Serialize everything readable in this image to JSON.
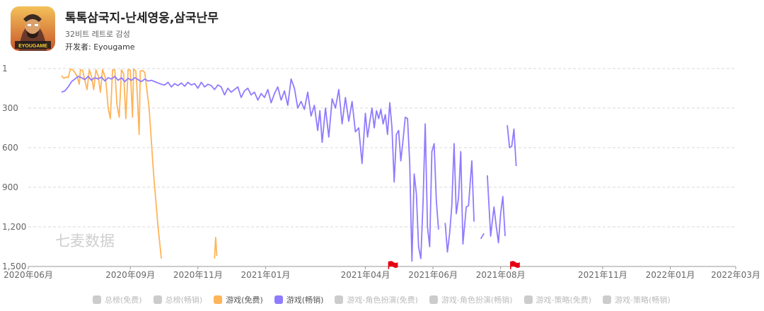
{
  "app": {
    "title": "톡톡삼국지-난세영웅,삼국난무",
    "subtitle": "32비트 레트로 감성",
    "developer": "开发者: Eyougame",
    "icon_label": "EYOUGAME"
  },
  "watermark": "七麦数据",
  "colors": {
    "free": "#ffb45a",
    "paid": "#8f7bff",
    "inactive": "#cccccc",
    "grid": "#d9d9d9",
    "flag": "#e60012"
  },
  "chart_data": {
    "type": "line",
    "y_inverted": true,
    "ylim": [
      1,
      1500
    ],
    "yticks": [
      "1",
      "300",
      "600",
      "900",
      "1,200",
      "1,500"
    ],
    "xlim": [
      "2020-06",
      "2022-03"
    ],
    "xticks": [
      "2020年06月",
      "2020年09月",
      "2020年11月",
      "2021年01月",
      "2021年04月",
      "2021年06月",
      "2021年08月",
      "2021年11月",
      "2022年01月",
      "2022年03月"
    ],
    "flags": [
      "2021-04-22",
      "2021-08-10"
    ],
    "legend": [
      {
        "label": "总榜(免费)",
        "active": false
      },
      {
        "label": "总榜(畅销)",
        "active": false
      },
      {
        "label": "游戏(免费)",
        "active": true,
        "color": "#ffb45a"
      },
      {
        "label": "游戏(畅销)",
        "active": true,
        "color": "#8f7bff"
      },
      {
        "label": "游戏-角色扮演(免费)",
        "active": false
      },
      {
        "label": "游戏-角色扮演(畅销)",
        "active": false
      },
      {
        "label": "游戏-策略(免费)",
        "active": false
      },
      {
        "label": "游戏-策略(畅销)",
        "active": false
      }
    ],
    "series": [
      {
        "name": "游戏(免费)",
        "color": "#ffb45a",
        "segments": [
          [
            [
              "2020-07-01",
              55
            ],
            [
              "2020-07-03",
              75
            ],
            [
              "2020-07-05",
              65
            ],
            [
              "2020-07-07",
              70
            ],
            [
              "2020-07-09",
              5
            ],
            [
              "2020-07-11",
              10
            ],
            [
              "2020-07-13",
              30
            ],
            [
              "2020-07-15",
              60
            ],
            [
              "2020-07-17",
              120
            ],
            [
              "2020-07-18",
              10
            ],
            [
              "2020-07-20",
              15
            ],
            [
              "2020-07-22",
              90
            ],
            [
              "2020-07-24",
              160
            ],
            [
              "2020-07-26",
              10
            ],
            [
              "2020-07-28",
              60
            ],
            [
              "2020-07-30",
              160
            ],
            [
              "2020-08-01",
              10
            ],
            [
              "2020-08-03",
              55
            ],
            [
              "2020-08-05",
              180
            ],
            [
              "2020-08-07",
              8
            ],
            [
              "2020-08-09",
              60
            ],
            [
              "2020-08-10",
              100
            ],
            [
              "2020-08-12",
              300
            ],
            [
              "2020-08-14",
              380
            ],
            [
              "2020-08-16",
              12
            ],
            [
              "2020-08-18",
              10
            ],
            [
              "2020-08-20",
              280
            ],
            [
              "2020-08-22",
              370
            ],
            [
              "2020-08-24",
              10
            ],
            [
              "2020-08-26",
              40
            ],
            [
              "2020-08-28",
              380
            ],
            [
              "2020-08-30",
              8
            ],
            [
              "2020-09-01",
              15
            ],
            [
              "2020-09-03",
              370
            ],
            [
              "2020-09-04",
              5
            ],
            [
              "2020-09-06",
              20
            ],
            [
              "2020-09-07",
              150
            ],
            [
              "2020-09-09",
              500
            ],
            [
              "2020-09-10",
              20
            ],
            [
              "2020-09-12",
              15
            ],
            [
              "2020-09-14",
              30
            ],
            [
              "2020-09-18",
              300
            ],
            [
              "2020-09-22",
              800
            ],
            [
              "2020-09-26",
              1200
            ],
            [
              "2020-09-29",
              1440
            ]
          ],
          [
            [
              "2020-11-16",
              1440
            ],
            [
              "2020-11-17",
              1280
            ],
            [
              "2020-11-18",
              1420
            ]
          ]
        ]
      },
      {
        "name": "游戏(畅销)",
        "color": "#8f7bff",
        "segments": [
          [
            [
              "2020-07-01",
              180
            ],
            [
              "2020-07-04",
              170
            ],
            [
              "2020-07-07",
              140
            ],
            [
              "2020-07-10",
              100
            ],
            [
              "2020-07-13",
              80
            ],
            [
              "2020-07-16",
              60
            ],
            [
              "2020-07-19",
              70
            ],
            [
              "2020-07-22",
              85
            ],
            [
              "2020-07-25",
              60
            ],
            [
              "2020-07-28",
              90
            ],
            [
              "2020-07-31",
              70
            ],
            [
              "2020-08-03",
              80
            ],
            [
              "2020-08-06",
              65
            ],
            [
              "2020-08-09",
              95
            ],
            [
              "2020-08-12",
              70
            ],
            [
              "2020-08-15",
              80
            ],
            [
              "2020-08-18",
              60
            ],
            [
              "2020-08-21",
              90
            ],
            [
              "2020-08-24",
              70
            ],
            [
              "2020-08-27",
              100
            ],
            [
              "2020-08-30",
              75
            ],
            [
              "2020-09-02",
              90
            ],
            [
              "2020-09-05",
              70
            ],
            [
              "2020-09-08",
              85
            ],
            [
              "2020-09-11",
              100
            ],
            [
              "2020-09-14",
              80
            ],
            [
              "2020-09-17",
              95
            ],
            [
              "2020-09-20",
              90
            ],
            [
              "2020-09-23",
              100
            ],
            [
              "2020-09-26",
              110
            ],
            [
              "2020-09-29",
              120
            ],
            [
              "2020-10-02",
              125
            ],
            [
              "2020-10-05",
              105
            ],
            [
              "2020-10-08",
              140
            ],
            [
              "2020-10-11",
              115
            ],
            [
              "2020-10-14",
              130
            ],
            [
              "2020-10-17",
              110
            ],
            [
              "2020-10-20",
              135
            ],
            [
              "2020-10-23",
              105
            ],
            [
              "2020-10-26",
              125
            ],
            [
              "2020-10-29",
              115
            ],
            [
              "2020-11-01",
              150
            ],
            [
              "2020-11-04",
              105
            ],
            [
              "2020-11-07",
              140
            ],
            [
              "2020-11-10",
              120
            ],
            [
              "2020-11-13",
              130
            ],
            [
              "2020-11-16",
              160
            ],
            [
              "2020-11-19",
              125
            ],
            [
              "2020-11-22",
              140
            ],
            [
              "2020-11-25",
              200
            ],
            [
              "2020-11-28",
              150
            ],
            [
              "2020-12-01",
              180
            ],
            [
              "2020-12-04",
              160
            ],
            [
              "2020-12-07",
              140
            ],
            [
              "2020-12-10",
              220
            ],
            [
              "2020-12-13",
              170
            ],
            [
              "2020-12-16",
              150
            ],
            [
              "2020-12-19",
              200
            ],
            [
              "2020-12-22",
              180
            ],
            [
              "2020-12-25",
              240
            ],
            [
              "2020-12-28",
              190
            ],
            [
              "2020-12-31",
              220
            ],
            [
              "2021-01-03",
              160
            ],
            [
              "2021-01-06",
              260
            ],
            [
              "2021-01-09",
              190
            ],
            [
              "2021-01-12",
              140
            ],
            [
              "2021-01-15",
              240
            ],
            [
              "2021-01-18",
              170
            ],
            [
              "2021-01-21",
              280
            ],
            [
              "2021-01-24",
              80
            ],
            [
              "2021-01-27",
              150
            ],
            [
              "2021-01-30",
              300
            ],
            [
              "2021-02-02",
              250
            ],
            [
              "2021-02-05",
              310
            ],
            [
              "2021-02-08",
              180
            ],
            [
              "2021-02-11",
              360
            ],
            [
              "2021-02-14",
              280
            ],
            [
              "2021-02-17",
              470
            ],
            [
              "2021-02-19",
              320
            ],
            [
              "2021-02-21",
              560
            ],
            [
              "2021-02-24",
              300
            ],
            [
              "2021-02-27",
              520
            ],
            [
              "2021-03-02",
              230
            ],
            [
              "2021-03-05",
              300
            ],
            [
              "2021-03-08",
              160
            ],
            [
              "2021-03-11",
              420
            ],
            [
              "2021-03-14",
              220
            ],
            [
              "2021-03-17",
              400
            ],
            [
              "2021-03-20",
              250
            ],
            [
              "2021-03-23",
              480
            ],
            [
              "2021-03-26",
              450
            ],
            [
              "2021-03-29",
              720
            ],
            [
              "2021-04-01",
              340
            ],
            [
              "2021-04-03",
              520
            ],
            [
              "2021-04-05",
              400
            ],
            [
              "2021-04-07",
              300
            ],
            [
              "2021-04-09",
              450
            ],
            [
              "2021-04-11",
              320
            ],
            [
              "2021-04-13",
              380
            ],
            [
              "2021-04-15",
              310
            ],
            [
              "2021-04-17",
              420
            ],
            [
              "2021-04-19",
              350
            ],
            [
              "2021-04-21",
              500
            ],
            [
              "2021-04-23",
              260
            ],
            [
              "2021-04-25",
              450
            ],
            [
              "2021-04-27",
              860
            ],
            [
              "2021-04-29",
              500
            ],
            [
              "2021-05-01",
              470
            ],
            [
              "2021-05-03",
              700
            ],
            [
              "2021-05-05",
              540
            ],
            [
              "2021-05-07",
              370
            ],
            [
              "2021-05-09",
              380
            ],
            [
              "2021-05-11",
              720
            ],
            [
              "2021-05-13",
              1460
            ],
            [
              "2021-05-15",
              800
            ],
            [
              "2021-05-17",
              950
            ],
            [
              "2021-05-19",
              1350
            ],
            [
              "2021-05-21",
              1440
            ],
            [
              "2021-05-23",
              1020
            ],
            [
              "2021-05-25",
              420
            ],
            [
              "2021-05-27",
              1200
            ],
            [
              "2021-05-29",
              1350
            ],
            [
              "2021-05-31",
              630
            ],
            [
              "2021-06-02",
              570
            ],
            [
              "2021-06-04",
              1000
            ],
            [
              "2021-06-06",
              1220
            ]
          ],
          [
            [
              "2021-06-12",
              1170
            ],
            [
              "2021-06-14",
              1390
            ],
            [
              "2021-06-16",
              1250
            ],
            [
              "2021-06-18",
              1040
            ],
            [
              "2021-06-20",
              570
            ],
            [
              "2021-06-22",
              1100
            ],
            [
              "2021-06-24",
              980
            ],
            [
              "2021-06-26",
              630
            ],
            [
              "2021-06-28",
              1330
            ],
            [
              "2021-07-01",
              1050
            ],
            [
              "2021-07-03",
              1040
            ],
            [
              "2021-07-06",
              700
            ],
            [
              "2021-07-08",
              1160
            ]
          ],
          [
            [
              "2021-07-14",
              1290
            ],
            [
              "2021-07-17",
              1250
            ]
          ],
          [
            [
              "2021-07-20",
              810
            ],
            [
              "2021-07-23",
              1270
            ],
            [
              "2021-07-26",
              1050
            ],
            [
              "2021-07-28",
              1190
            ],
            [
              "2021-07-30",
              1320
            ],
            [
              "2021-08-01",
              1100
            ],
            [
              "2021-08-03",
              970
            ],
            [
              "2021-08-05",
              1270
            ]
          ],
          [
            [
              "2021-08-07",
              430
            ],
            [
              "2021-08-09",
              600
            ],
            [
              "2021-08-11",
              590
            ],
            [
              "2021-08-13",
              460
            ],
            [
              "2021-08-15",
              740
            ]
          ]
        ]
      }
    ]
  }
}
